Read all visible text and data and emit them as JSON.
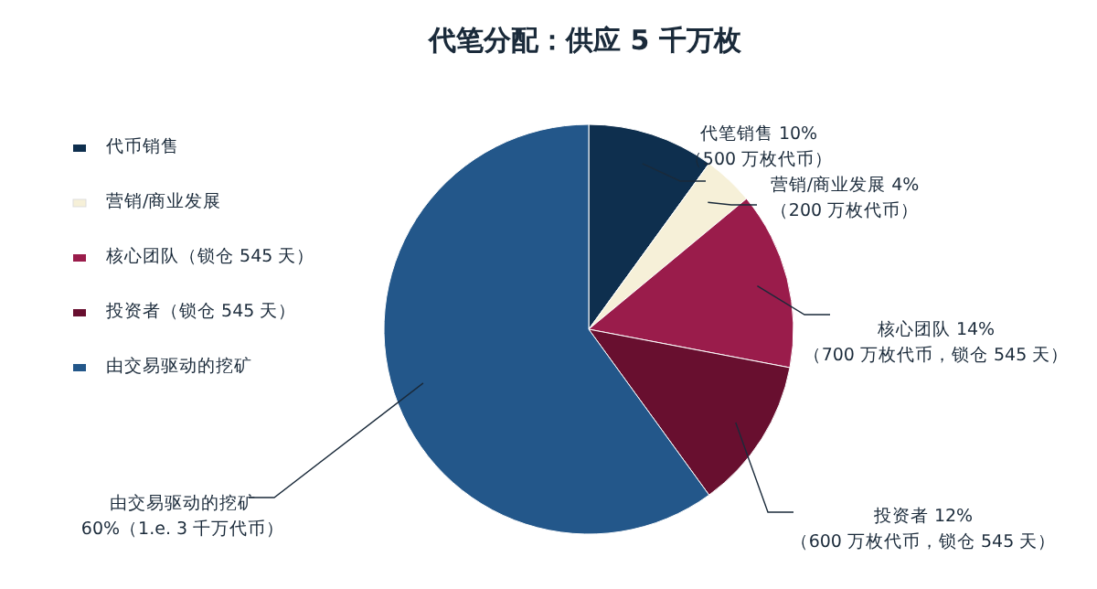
{
  "chart_data": {
    "type": "pie",
    "title": "代笔分配：供应 5 千万枚",
    "categories": [
      "代币销售",
      "营销/商业发展",
      "核心团队（锁仓 545 天）",
      "投资者（锁仓 545 天）",
      "由交易驱动的挖矿"
    ],
    "values": [
      10,
      4,
      14,
      12,
      60
    ],
    "colors": [
      "#0e2f4e",
      "#f6f0d8",
      "#9a1c4b",
      "#680f2f",
      "#23578a"
    ],
    "legend": "left",
    "annotations": [
      "代笔销售 10%\n（500 万枚代币）",
      "营销/商业发展 4%\n（200 万枚代币）",
      "核心团队 14%\n（700 万枚代币，锁仓 545 天）",
      "投资者 12%\n（600 万枚代币，锁仓 545 天）",
      "由交易驱动的挖矿\n60%（1.e. 3 千万代币）"
    ]
  }
}
